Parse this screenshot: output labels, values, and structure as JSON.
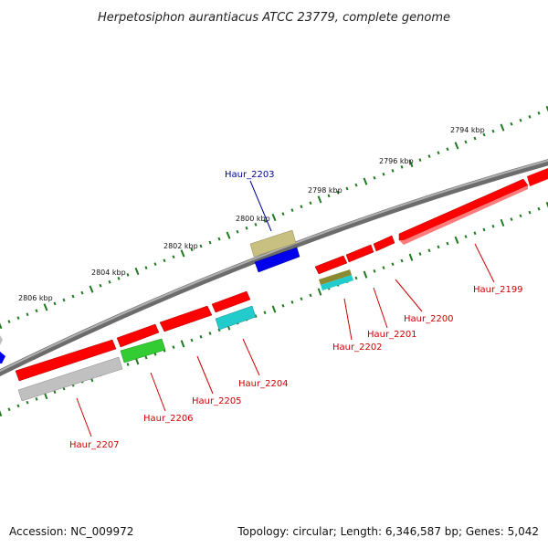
{
  "title": "Herpetosiphon aurantiacus ATCC 23779, complete genome",
  "accession": "Accession: NC_009972",
  "topology": "Topology: circular; Length: 6,346,587 bp; Genes: 5,042",
  "kbp_ticks": [
    "2794 kbp",
    "2796 kbp",
    "2798 kbp",
    "2800 kbp",
    "2802 kbp",
    "2804 kbp",
    "2806 kbp"
  ],
  "genes": [
    {
      "label": "Haur_2199",
      "color": "#cc0000",
      "strand": "reverse"
    },
    {
      "label": "Haur_2200",
      "color": "#cc0000",
      "strand": "reverse"
    },
    {
      "label": "Haur_2201",
      "color": "#cc0000",
      "strand": "reverse"
    },
    {
      "label": "Haur_2202",
      "color": "#cc0000",
      "strand": "reverse"
    },
    {
      "label": "Haur_2203",
      "color": "#000099",
      "strand": "forward"
    },
    {
      "label": "Haur_2204",
      "color": "#cc0000",
      "strand": "reverse"
    },
    {
      "label": "Haur_2205",
      "color": "#cc0000",
      "strand": "reverse"
    },
    {
      "label": "Haur_2206",
      "color": "#cc0000",
      "strand": "reverse"
    },
    {
      "label": "Haur_2207",
      "color": "#cc0000",
      "strand": "reverse"
    }
  ],
  "colors": {
    "backbone": "#8a8a8a",
    "tick": "#1f7a1f",
    "gene_red": "#ff0000",
    "gene_blue": "#0000ee",
    "gene_olive": "#c8c080",
    "gene_cyan": "#22cccc",
    "gene_green": "#33cc33",
    "gene_gray": "#c0c0c0"
  }
}
